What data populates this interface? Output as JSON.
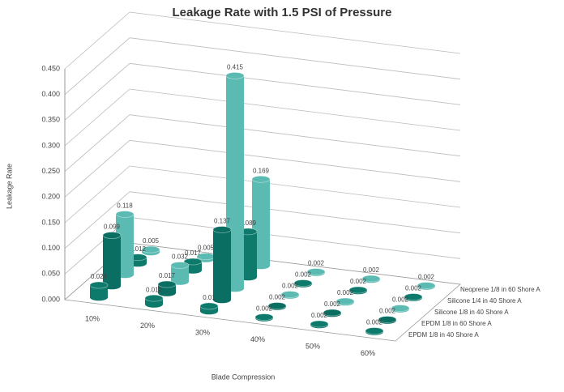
{
  "chart_data": {
    "type": "bar3d",
    "title": "Leakage Rate with 1.5 PSI of Pressure",
    "x_label": "Blade Compression",
    "y_label": "Leakage Rate",
    "categories": [
      "10%",
      "20%",
      "30%",
      "40%",
      "50%",
      "60%"
    ],
    "series": [
      {
        "name": "EPDM 1/8 in 40 Shore A",
        "color": "#0d7a6c",
        "values": [
          0.024,
          0.012,
          0.01,
          0.002,
          0.002,
          0.002
        ]
      },
      {
        "name": "EPDM 1/8 in 60 Shore A",
        "color": "#0a6e62",
        "values": [
          0.099,
          0.017,
          0.137,
          0.002,
          0.002,
          0.002
        ]
      },
      {
        "name": "Silicone 1/8 in 40 Shore A",
        "color": "#5bbab2",
        "values": [
          0.118,
          0.032,
          0.415,
          0.002,
          0.002,
          0.002
        ]
      },
      {
        "name": "Silicone 1/4 in 40 Shore A",
        "color": "#0d7a6c",
        "values": [
          0.012,
          0.017,
          0.089,
          0.002,
          0.002,
          0.002
        ]
      },
      {
        "name": "Neoprene 1/8 in 60 Shore A",
        "color": "#5bbab2",
        "values": [
          0.005,
          0.005,
          0.169,
          0.002,
          0.002,
          0.002
        ]
      }
    ],
    "ylim": [
      0,
      0.45
    ],
    "yticks": [
      {
        "value": 0,
        "label": "0.000"
      },
      {
        "value": 0.05,
        "label": "0.050"
      },
      {
        "value": 0.1,
        "label": "0.100"
      },
      {
        "value": 0.15,
        "label": "0.150"
      },
      {
        "value": 0.2,
        "label": "0.200"
      },
      {
        "value": 0.25,
        "label": "0.250"
      },
      {
        "value": 0.3,
        "label": "0.300"
      },
      {
        "value": 0.35,
        "label": "0.350"
      },
      {
        "value": 0.4,
        "label": "0.400"
      },
      {
        "value": 0.45,
        "label": "0.450"
      }
    ],
    "grid": true
  }
}
